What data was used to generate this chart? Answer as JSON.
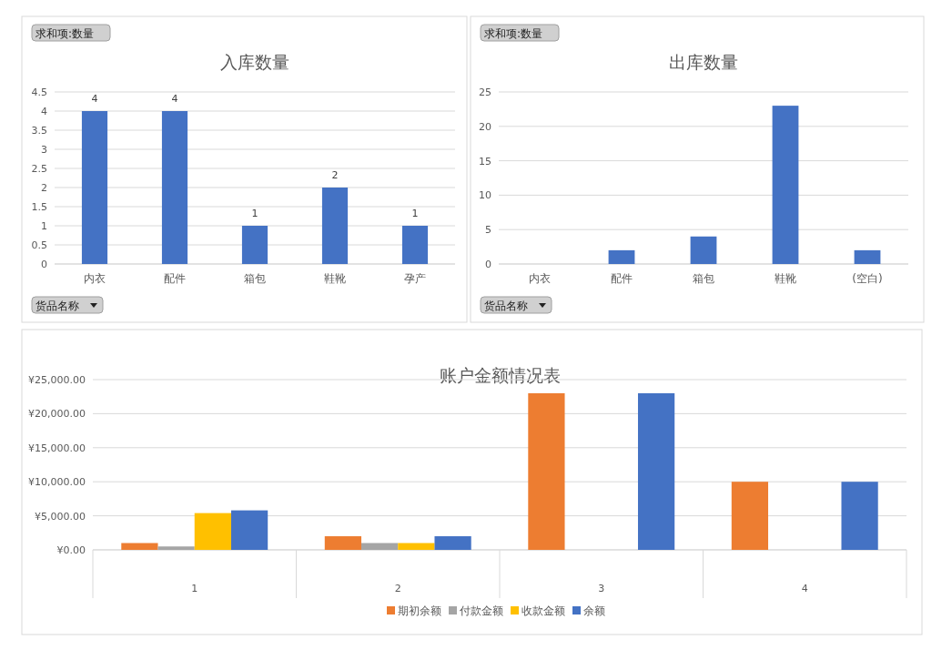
{
  "chart_data": [
    {
      "type": "bar",
      "title": "入库数量",
      "categories": [
        "内衣",
        "配件",
        "箱包",
        "鞋靴",
        "孕产"
      ],
      "values": [
        4,
        4,
        1,
        2,
        1
      ],
      "color": "#4472c4",
      "ylim": [
        0,
        4.5
      ],
      "yticks": [
        0,
        0.5,
        1,
        1.5,
        2,
        2.5,
        3,
        3.5,
        4,
        4.5
      ],
      "grid": "y",
      "data_labels": true,
      "annotations": [
        "求和项:数量",
        "货品名称"
      ]
    },
    {
      "type": "bar",
      "title": "出库数量",
      "categories": [
        "内衣",
        "配件",
        "箱包",
        "鞋靴",
        "(空白)"
      ],
      "values": [
        0,
        2,
        4,
        23,
        2
      ],
      "color": "#4472c4",
      "ylim": [
        0,
        25
      ],
      "yticks": [
        0,
        5,
        10,
        15,
        20,
        25
      ],
      "grid": "y",
      "annotations": [
        "求和项:数量",
        "货品名称"
      ]
    },
    {
      "type": "bar",
      "title": "账户金额情况表",
      "categories": [
        "1",
        "2",
        "3",
        "4"
      ],
      "series": [
        {
          "name": "期初余额",
          "color": "#ed7d31",
          "values": [
            1000,
            2000,
            23000,
            10000
          ]
        },
        {
          "name": "付款金额",
          "color": "#a5a5a5",
          "values": [
            500,
            1000,
            0,
            0
          ]
        },
        {
          "name": "收款金额",
          "color": "#ffc000",
          "values": [
            5400,
            1000,
            0,
            0
          ]
        },
        {
          "name": "余额",
          "color": "#4472c4",
          "values": [
            5800,
            2000,
            23000,
            10000
          ]
        }
      ],
      "ylim": [
        0,
        25000
      ],
      "yticks": [
        {
          "value": 0,
          "label": "¥0.00"
        },
        {
          "value": 5000,
          "label": "¥5,000.00"
        },
        {
          "value": 10000,
          "label": "¥10,000.00"
        },
        {
          "value": 15000,
          "label": "¥15,000.00"
        },
        {
          "value": 20000,
          "label": "¥20,000.00"
        },
        {
          "value": 25000,
          "label": "¥25,000.00"
        }
      ],
      "grid": "y",
      "legend": "bottom"
    }
  ]
}
